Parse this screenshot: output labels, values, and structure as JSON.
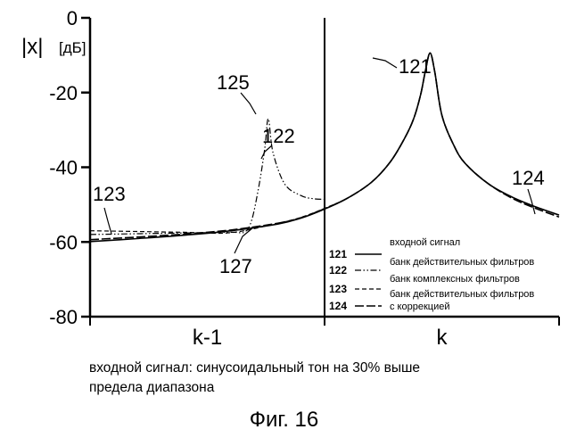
{
  "chart_data": {
    "type": "line",
    "title": "",
    "ylabel": "|x|",
    "yunit": "[дБ]",
    "ylim": [
      -80,
      0
    ],
    "yticks": [
      {
        "value": 0,
        "label": "0"
      },
      {
        "value": -20,
        "label": "-20"
      },
      {
        "value": -40,
        "label": "-40"
      },
      {
        "value": -60,
        "label": "-60"
      },
      {
        "value": -80,
        "label": "-80"
      }
    ],
    "xlim": [
      0,
      2
    ],
    "x_categories": [
      {
        "label": "k-1",
        "center": 0.5
      },
      {
        "label": "k",
        "center": 1.5
      }
    ],
    "divider_x": 1.0,
    "grid": false,
    "legend_position": "bottom-right",
    "series": [
      {
        "ref": "121",
        "name": "входной сигнал",
        "style": "solid",
        "x": [
          0,
          0.2,
          0.4,
          0.6,
          0.8,
          0.9,
          1.0,
          1.1,
          1.2,
          1.28,
          1.34,
          1.38,
          1.41,
          1.43,
          1.45,
          1.47,
          1.5,
          1.55,
          1.6,
          1.7,
          1.8,
          1.9,
          2.0
        ],
        "y": [
          -59.9,
          -59.1,
          -58.2,
          -57.0,
          -55.2,
          -53.6,
          -51.2,
          -48.2,
          -44.0,
          -38.6,
          -32.4,
          -27.0,
          -20.5,
          -14.2,
          -9.4,
          -14.5,
          -26.0,
          -34.0,
          -39.0,
          -44.5,
          -48.0,
          -50.6,
          -52.8
        ]
      },
      {
        "ref": "122",
        "name": "банк действительных фильтров",
        "style": "dash-dot-dot",
        "x": [
          0,
          0.4,
          0.6,
          0.66,
          0.69,
          0.72,
          0.745,
          0.76,
          0.78,
          0.83,
          0.9,
          0.95,
          1.0
        ],
        "y": [
          -58.0,
          -57.6,
          -57.4,
          -57.3,
          -54.0,
          -45.0,
          -35.0,
          -27.0,
          -36.0,
          -44.5,
          -47.6,
          -48.4,
          -48.6
        ]
      },
      {
        "ref": "123",
        "name": "банк комплексных фильтров",
        "style": "dashed",
        "x": [
          0,
          0.2,
          0.4,
          0.6,
          0.8,
          0.9,
          1.0,
          1.1,
          1.2,
          1.28,
          1.34,
          1.38,
          1.41,
          1.43,
          1.45,
          1.47,
          1.5,
          1.55,
          1.6,
          1.7,
          1.8,
          1.9,
          2.0
        ],
        "y": [
          -57.0,
          -57.2,
          -57.4,
          -57.5,
          -55.0,
          -53.4,
          -51.0,
          -48.2,
          -44.0,
          -38.6,
          -32.4,
          -27.0,
          -20.5,
          -14.2,
          -9.4,
          -14.5,
          -26.0,
          -34.0,
          -39.0,
          -44.5,
          -48.0,
          -50.6,
          -52.8
        ]
      },
      {
        "ref": "124",
        "name": "банк действительных фильтров с коррекцией",
        "style": "long-dash",
        "x": [
          0,
          0.2,
          0.4,
          0.6,
          0.8,
          0.9,
          1.0,
          1.1,
          1.2,
          1.28,
          1.34,
          1.38,
          1.41,
          1.43,
          1.45,
          1.47,
          1.5,
          1.55,
          1.6,
          1.7,
          1.8,
          1.9,
          2.0
        ],
        "y": [
          -59.4,
          -58.7,
          -57.9,
          -56.8,
          -55.0,
          -53.5,
          -51.1,
          -48.2,
          -44.0,
          -38.6,
          -32.4,
          -27.0,
          -20.5,
          -14.2,
          -9.4,
          -14.5,
          -26.0,
          -34.0,
          -39.0,
          -44.5,
          -48.3,
          -51.0,
          -53.3
        ]
      }
    ],
    "annotations": [
      {
        "label": "121",
        "target": "121"
      },
      {
        "label": "122",
        "target": "122"
      },
      {
        "label": "123",
        "target": "123"
      },
      {
        "label": "124",
        "target": "124"
      },
      {
        "label": "125",
        "target": "122-peak"
      },
      {
        "label": "127",
        "target": "left-curves"
      }
    ]
  },
  "legend": {
    "items": [
      {
        "num": "121",
        "lines": [
          "входной сигнал"
        ]
      },
      {
        "num": "122",
        "lines": [
          "банк действительных фильтров"
        ]
      },
      {
        "num": "123",
        "lines": [
          "банк комплексных фильтров"
        ]
      },
      {
        "num": "124",
        "lines": [
          "банк действительных фильтров",
          "с коррекцией"
        ]
      }
    ]
  },
  "caption": {
    "line1": "входной сигнал: синусоидальный тон на 30% выше",
    "line2": "предела диапазона"
  },
  "figure_label": "Фиг. 16"
}
